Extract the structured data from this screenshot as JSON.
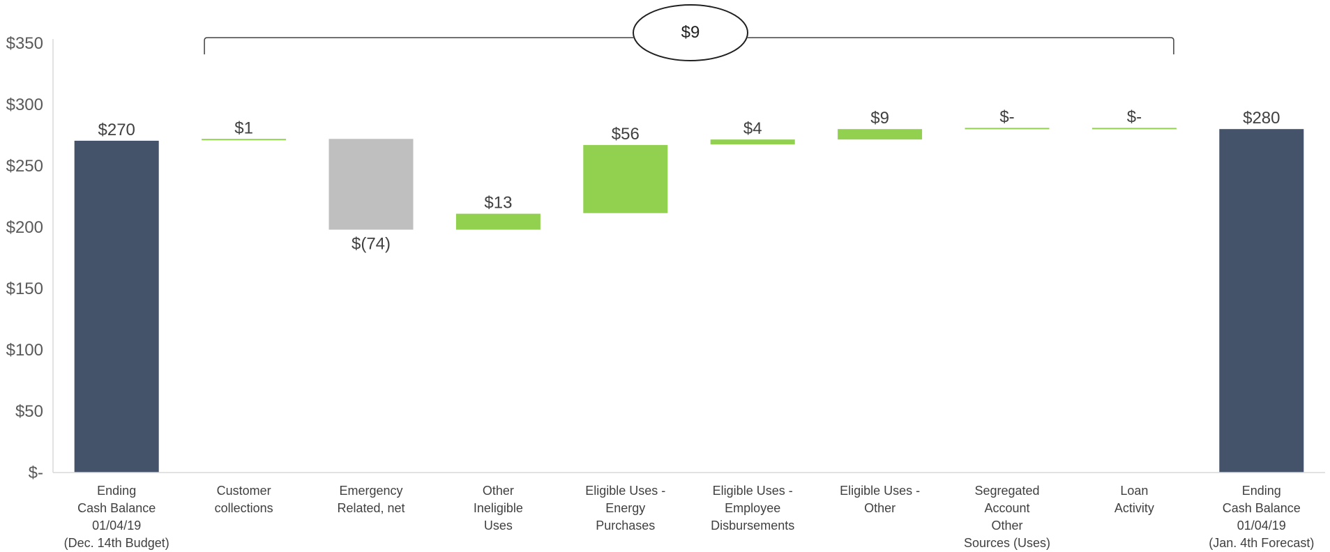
{
  "chart_data": {
    "type": "bar",
    "subtype": "waterfall",
    "title": "",
    "xlabel": "",
    "ylabel": "",
    "ylim": [
      0,
      350
    ],
    "yticks": [
      0,
      50,
      100,
      150,
      200,
      250,
      300,
      350
    ],
    "ytick_labels": [
      "$-",
      "$50",
      "$100",
      "$150",
      "$200",
      "$250",
      "$300",
      "$350"
    ],
    "grid": false,
    "legend": "none",
    "categories": [
      [
        "Ending",
        "Cash Balance",
        "01/04/19",
        "(Dec. 14th Budget)"
      ],
      [
        "Customer",
        "collections"
      ],
      [
        "Emergency",
        "Related, net"
      ],
      [
        "Other",
        "Ineligible",
        "Uses"
      ],
      [
        "Eligible Uses -",
        "Energy",
        "Purchases"
      ],
      [
        "Eligible Uses -",
        "Employee",
        "Disbursements"
      ],
      [
        "Eligible Uses -",
        "Other"
      ],
      [
        "Segregated",
        "Account",
        "Other",
        "Sources (Uses)"
      ],
      [
        "Loan",
        "Activity"
      ],
      [
        "Ending",
        "Cash Balance",
        "01/04/19",
        "(Jan. 4th Forecast)"
      ]
    ],
    "bars": [
      {
        "kind": "total",
        "start": 0,
        "end": 270.5,
        "label": "$270",
        "label_pos": "above"
      },
      {
        "kind": "increase",
        "start": 271,
        "end": 272,
        "label": "$1",
        "label_pos": "above"
      },
      {
        "kind": "decrease",
        "start": 272,
        "end": 198,
        "label": "$(74)",
        "label_pos": "below"
      },
      {
        "kind": "increase",
        "start": 198,
        "end": 211,
        "label": "$13",
        "label_pos": "above"
      },
      {
        "kind": "increase",
        "start": 211.5,
        "end": 267,
        "label": "$56",
        "label_pos": "above"
      },
      {
        "kind": "increase",
        "start": 267.5,
        "end": 271.5,
        "label": "$4",
        "label_pos": "above"
      },
      {
        "kind": "increase",
        "start": 271.5,
        "end": 280,
        "label": "$9",
        "label_pos": "above"
      },
      {
        "kind": "increase",
        "start": 280,
        "end": 281,
        "label": "$-",
        "label_pos": "above"
      },
      {
        "kind": "increase",
        "start": 280,
        "end": 281,
        "label": "$-",
        "label_pos": "above"
      },
      {
        "kind": "total",
        "start": 0,
        "end": 280,
        "label": "$280",
        "label_pos": "above"
      }
    ],
    "bracket": {
      "from_index": 1,
      "to_index": 8,
      "label": "$9"
    },
    "colors": {
      "total": "#44536a",
      "increase": "#92d050",
      "decrease": "#bfbfbf",
      "axis": "#d9d9d9",
      "bracket": "#404040"
    }
  }
}
